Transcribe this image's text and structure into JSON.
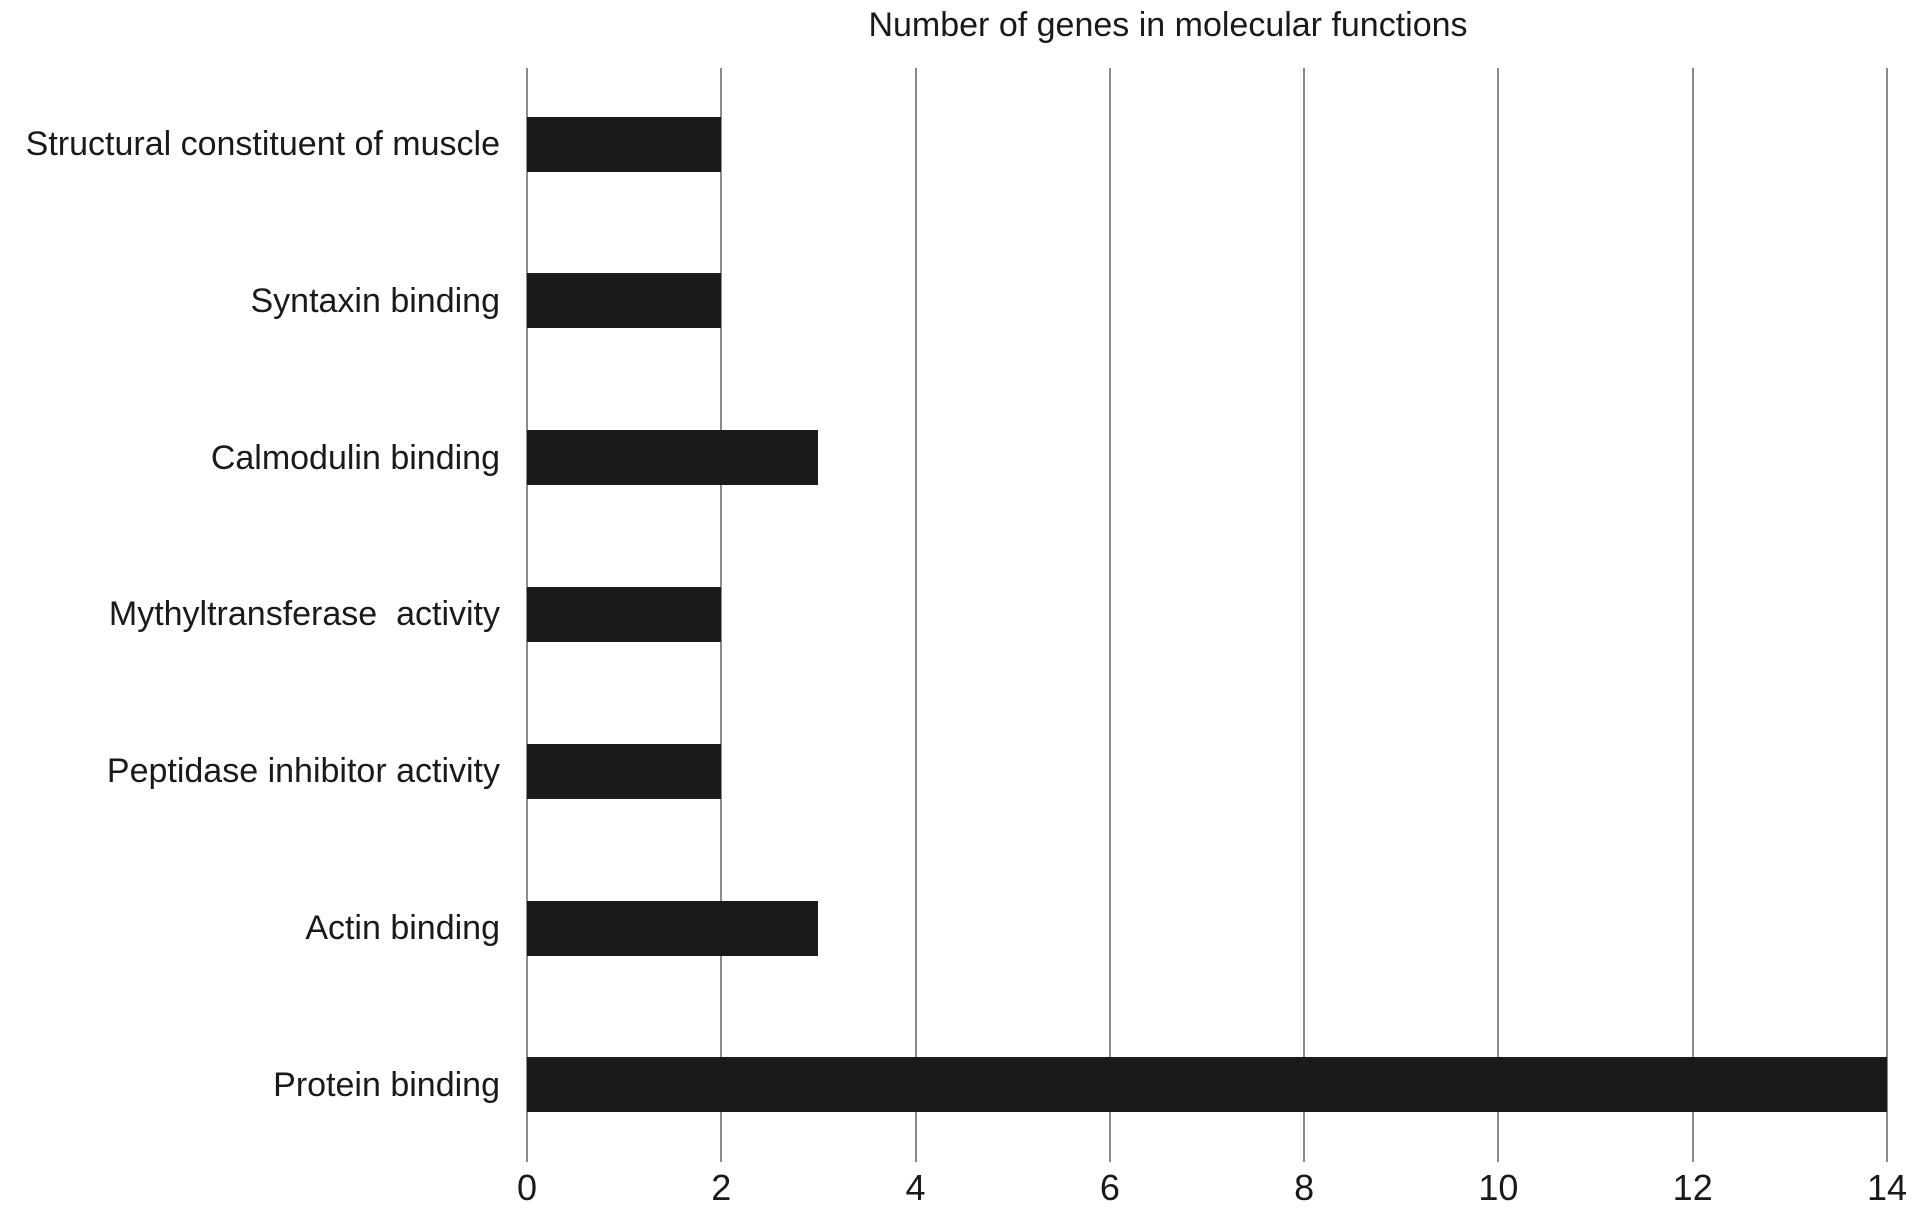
{
  "chart_data": {
    "type": "bar",
    "orientation": "horizontal",
    "title": "Number of genes in molecular functions",
    "categories": [
      "Structural constituent of muscle",
      "Syntaxin binding",
      "Calmodulin binding",
      "Mythyltransferase  activity",
      "Peptidase inhibitor activity",
      "Actin binding",
      "Protein binding"
    ],
    "values": [
      2,
      2,
      3,
      2,
      2,
      3,
      14
    ],
    "xlabel": "",
    "ylabel": "",
    "xlim": [
      0,
      14
    ],
    "x_ticks": [
      0,
      2,
      4,
      6,
      8,
      10,
      12,
      14
    ],
    "grid": "vertical",
    "legend_position": "none",
    "bar_color": "#1a1a1a",
    "gridline_color": "#8a8a8a",
    "text_color": "#1a1a1a",
    "background_color": "#ffffff"
  }
}
